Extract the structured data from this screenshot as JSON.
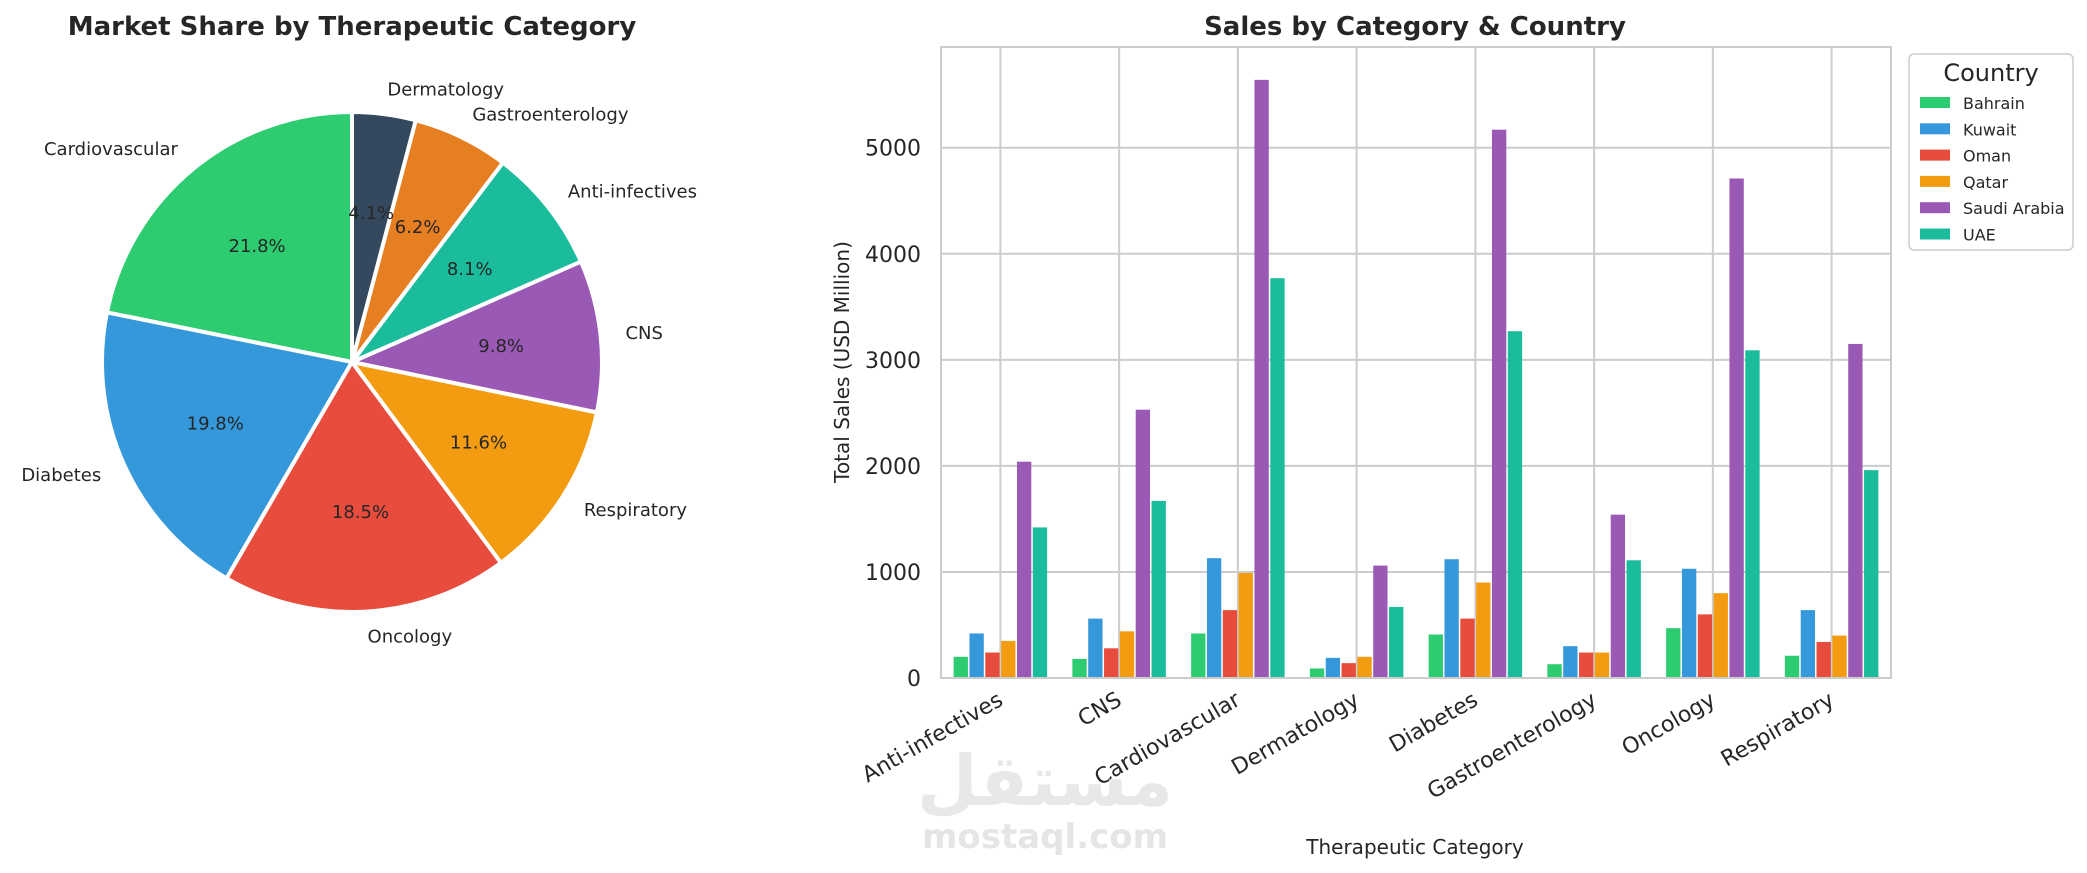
{
  "chart_data": [
    {
      "type": "pie",
      "title": "Market Share by Therapeutic Category",
      "labels": [
        "Cardiovascular",
        "Diabetes",
        "Oncology",
        "Respiratory",
        "CNS",
        "Anti-infectives",
        "Gastroenterology",
        "Dermatology"
      ],
      "values": [
        21.8,
        19.8,
        18.5,
        11.6,
        9.8,
        8.1,
        6.2,
        4.1
      ],
      "value_labels": [
        "21.8%",
        "19.8%",
        "18.5%",
        "11.6%",
        "9.8%",
        "8.1%",
        "6.2%",
        "4.1%"
      ],
      "colors": [
        "#2ecc71",
        "#3498db",
        "#e74c3c",
        "#f39c12",
        "#9b59b6",
        "#1abc9c",
        "#e67e22",
        "#34495e"
      ],
      "start_angle": "top, proceeding counter-clockwise"
    },
    {
      "type": "bar",
      "title": "Sales by Category & Country",
      "xlabel": "Therapeutic Category",
      "ylabel": "Total Sales (USD Million)",
      "ylim": [
        0,
        5950
      ],
      "yticks": [
        0,
        1000,
        2000,
        3000,
        4000,
        5000
      ],
      "grid": true,
      "legend_title": "Country",
      "legend_position": "outside top-right",
      "categories": [
        "Anti-infectives",
        "CNS",
        "Cardiovascular",
        "Dermatology",
        "Diabetes",
        "Gastroenterology",
        "Oncology",
        "Respiratory"
      ],
      "series": [
        {
          "name": "Bahrain",
          "color": "#2ecc71",
          "values": [
            200,
            180,
            420,
            90,
            410,
            130,
            470,
            210
          ]
        },
        {
          "name": "Kuwait",
          "color": "#3498db",
          "values": [
            420,
            560,
            1130,
            190,
            1120,
            300,
            1030,
            640
          ]
        },
        {
          "name": "Oman",
          "color": "#e74c3c",
          "values": [
            240,
            280,
            640,
            140,
            560,
            240,
            600,
            340
          ]
        },
        {
          "name": "Qatar",
          "color": "#f39c12",
          "values": [
            350,
            440,
            990,
            200,
            900,
            240,
            800,
            400
          ]
        },
        {
          "name": "Saudi Arabia",
          "color": "#9b59b6",
          "values": [
            2040,
            2530,
            5640,
            1060,
            5170,
            1540,
            4710,
            3150
          ]
        },
        {
          "name": "UAE",
          "color": "#1abc9c",
          "values": [
            1420,
            1670,
            3770,
            670,
            3270,
            1110,
            3090,
            1960
          ]
        }
      ]
    }
  ],
  "watermark": {
    "arabic": "مستقل",
    "latin": "mostaql.com"
  }
}
